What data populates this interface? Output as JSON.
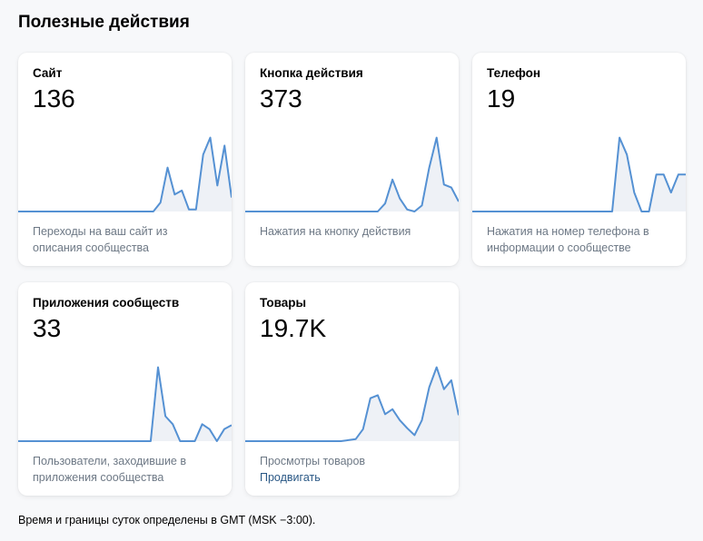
{
  "page": {
    "title": "Полезные действия",
    "footnote": "Время и границы суток определены в GMT (MSK −3:00)."
  },
  "colors": {
    "line": "#5591d3",
    "fill": "#eef1f6",
    "link": "#2a5885"
  },
  "cards": [
    {
      "title": "Сайт",
      "value": "136",
      "description": "Переходы на ваш сайт из описания сообщества",
      "sparkline": [
        0,
        0,
        0,
        0,
        0,
        0,
        0,
        0,
        0,
        0,
        0,
        0,
        0,
        0,
        0,
        0,
        0,
        0,
        0,
        0,
        0.09,
        0.44,
        0.17,
        0.21,
        0.02,
        0.02,
        0.57,
        0.74,
        0.26,
        0.66,
        0.14
      ]
    },
    {
      "title": "Кнопка действия",
      "value": "373",
      "description": "Нажатия на кнопку действия",
      "sparkline": [
        0,
        0,
        0,
        0,
        0,
        0,
        0,
        0,
        0,
        0,
        0,
        0,
        0,
        0,
        0,
        0,
        0,
        0,
        0,
        0.08,
        0.32,
        0.13,
        0.02,
        0,
        0.06,
        0.44,
        0.74,
        0.27,
        0.24,
        0.1
      ]
    },
    {
      "title": "Телефон",
      "value": "19",
      "description": "Нажатия на номер телефона в информации о сообществе",
      "sparkline": [
        0,
        0,
        0,
        0,
        0,
        0,
        0,
        0,
        0,
        0,
        0,
        0,
        0,
        0,
        0,
        0,
        0,
        0,
        0,
        0,
        0.74,
        0.57,
        0.19,
        0,
        0,
        0.37,
        0.37,
        0.19,
        0.37,
        0.37
      ]
    },
    {
      "title": "Приложения сообществ",
      "value": "33",
      "description": "Пользователи, заходившие в приложения сообщества",
      "sparkline": [
        0,
        0,
        0,
        0,
        0,
        0,
        0,
        0,
        0,
        0,
        0,
        0,
        0,
        0,
        0,
        0,
        0,
        0,
        0,
        0.74,
        0.25,
        0.17,
        0,
        0,
        0,
        0.17,
        0.12,
        0,
        0.12,
        0.16
      ]
    },
    {
      "title": "Товары",
      "value": "19.7K",
      "description": "Просмотры товаров",
      "link": "Продвигать",
      "sparkline": [
        0,
        0,
        0,
        0,
        0,
        0,
        0,
        0,
        0,
        0,
        0,
        0,
        0,
        0,
        0.01,
        0.02,
        0.12,
        0.43,
        0.46,
        0.27,
        0.32,
        0.21,
        0.13,
        0.06,
        0.21,
        0.54,
        0.74,
        0.52,
        0.61,
        0.26
      ]
    }
  ]
}
